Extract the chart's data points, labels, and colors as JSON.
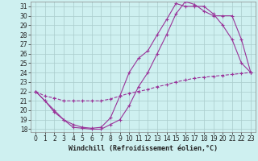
{
  "xlabel": "Windchill (Refroidissement éolien,°C)",
  "background_color": "#cef0f0",
  "grid_color": "#aacccc",
  "line_color": "#993399",
  "xlim": [
    -0.5,
    23.5
  ],
  "ylim": [
    17.7,
    31.5
  ],
  "xticks": [
    0,
    1,
    2,
    3,
    4,
    5,
    6,
    7,
    8,
    9,
    10,
    11,
    12,
    13,
    14,
    15,
    16,
    17,
    18,
    19,
    20,
    21,
    22,
    23
  ],
  "yticks": [
    18,
    19,
    20,
    21,
    22,
    23,
    24,
    25,
    26,
    27,
    28,
    29,
    30,
    31
  ],
  "line1_x": [
    0,
    1,
    2,
    3,
    4,
    5,
    6,
    7,
    8,
    9,
    10,
    11,
    12,
    13,
    14,
    15,
    16,
    17,
    18,
    19,
    20,
    21,
    22,
    23
  ],
  "line1_y": [
    22.0,
    21.0,
    19.8,
    19.0,
    18.5,
    18.2,
    18.1,
    18.2,
    19.2,
    21.5,
    24.0,
    25.5,
    26.3,
    28.0,
    29.6,
    31.3,
    31.0,
    31.0,
    31.0,
    30.2,
    29.0,
    27.5,
    25.0,
    24.0
  ],
  "line2_x": [
    0,
    1,
    2,
    3,
    4,
    5,
    6,
    7,
    8,
    9,
    10,
    11,
    12,
    13,
    14,
    15,
    16,
    17,
    18,
    19,
    20,
    21,
    22,
    23
  ],
  "line2_y": [
    22.0,
    21.0,
    20.0,
    19.0,
    18.2,
    18.1,
    18.0,
    18.0,
    18.5,
    19.0,
    20.5,
    22.5,
    24.0,
    26.0,
    28.0,
    30.2,
    31.5,
    31.2,
    30.5,
    30.0,
    30.0,
    30.0,
    27.5,
    24.0
  ],
  "line3_x": [
    0,
    1,
    2,
    3,
    4,
    5,
    6,
    7,
    8,
    9,
    10,
    11,
    12,
    13,
    14,
    15,
    16,
    17,
    18,
    19,
    20,
    21,
    22,
    23
  ],
  "line3_y": [
    22.0,
    21.5,
    21.3,
    21.0,
    21.0,
    21.0,
    21.0,
    21.0,
    21.2,
    21.5,
    21.8,
    22.0,
    22.2,
    22.5,
    22.7,
    23.0,
    23.2,
    23.4,
    23.5,
    23.6,
    23.7,
    23.8,
    23.9,
    24.0
  ],
  "tick_fontsize": 5.5,
  "label_fontsize": 6.0
}
